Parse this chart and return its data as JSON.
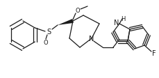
{
  "bg_color": "#ffffff",
  "line_color": "#1a1a1a",
  "lw": 0.9,
  "fig_width": 2.29,
  "fig_height": 1.13,
  "dpi": 100,
  "xlim": [
    0,
    229
  ],
  "ylim": [
    0,
    113
  ]
}
